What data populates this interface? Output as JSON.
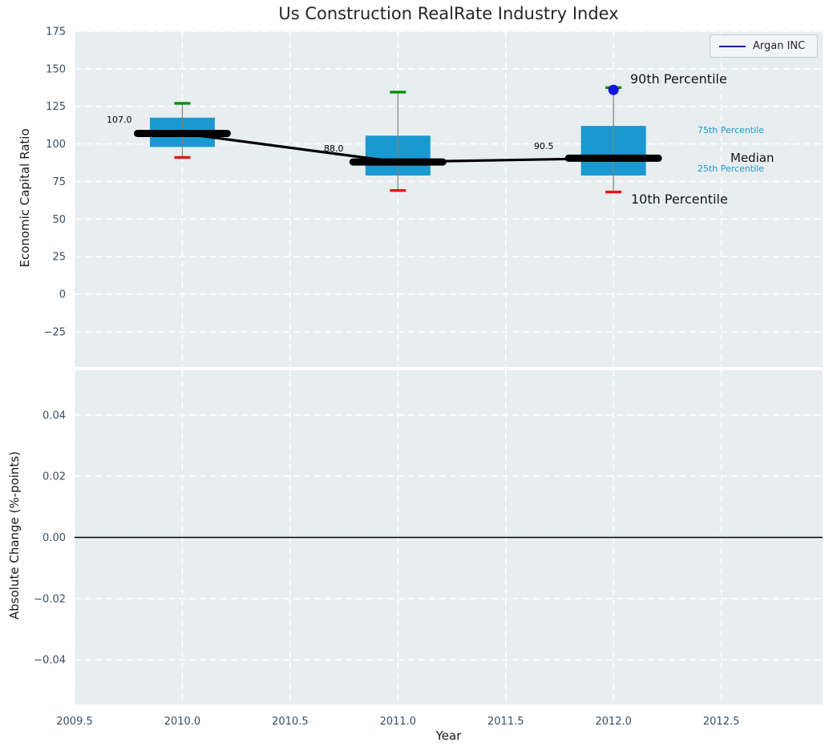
{
  "figure": {
    "title": "Us Construction RealRate Industry Index",
    "xlabel": "Year",
    "top_ylabel": "Economic Capital Ratio",
    "bottom_ylabel": "Absolute Change (%-points)",
    "legend_label": "Argan INC"
  },
  "chart_data": [
    {
      "type": "boxplot",
      "panel": "top",
      "title": "Us Construction RealRate Industry Index",
      "ylabel": "Economic Capital Ratio",
      "xlabel": "Year",
      "legend": [
        {
          "label": "Argan INC",
          "color": "#1414cc"
        }
      ],
      "legend_position": "upper right",
      "grid": "white dashed gridlines on light panel",
      "xlim": [
        2009.5,
        2012.97
      ],
      "ylim": [
        -48.5,
        175
      ],
      "xticks": [
        2009.5,
        2010.0,
        2010.5,
        2011.0,
        2011.5,
        2012.0,
        2012.5
      ],
      "xtick_labels": [
        "2009.5",
        "2010.0",
        "2010.5",
        "2011.0",
        "2011.5",
        "2012.0",
        "2012.5"
      ],
      "yticks": [
        175,
        150,
        125,
        100,
        75,
        50,
        25,
        0,
        -25
      ],
      "ytick_labels": [
        "175",
        "150",
        "125",
        "100",
        "75",
        "50",
        "25",
        "0",
        "−25"
      ],
      "boxes": [
        {
          "year": 2010,
          "median": 107.0,
          "median_label": "107.0",
          "q1": 98.0,
          "q3": 117.5,
          "p10": 91.0,
          "p90": 127.0
        },
        {
          "year": 2011,
          "median": 88.0,
          "median_label": "88.0",
          "q1": 79.0,
          "q3": 105.5,
          "p10": 69.0,
          "p90": 134.5
        },
        {
          "year": 2012,
          "median": 90.5,
          "median_label": "90.5",
          "q1": 79.0,
          "q3": 112.0,
          "p10": 68.0,
          "p90": 137.5
        }
      ],
      "median_line": [
        [
          2010,
          107.0
        ],
        [
          2011,
          88.0
        ],
        [
          2012,
          90.5
        ]
      ],
      "argan_point": {
        "year": 2012,
        "value": 136.0
      },
      "annotations": {
        "p90": "90th Percentile",
        "p75": "75th Percentile",
        "median": "Median",
        "p25": "25th Percentile",
        "p10": "10th Percentile"
      },
      "colors": {
        "box": "#1a99d0",
        "median_line": "#000000",
        "whisker": "#808080",
        "p90_cap": "#009000",
        "p10_cap": "#e81414",
        "argan": "#1414dc",
        "panel_bg": "#e8edef",
        "grid": "#ffffff",
        "tick_text": "#3a4d63",
        "annotation_accent": "#189ad2"
      }
    },
    {
      "type": "line",
      "panel": "bottom",
      "ylabel": "Absolute Change (%-points)",
      "ylim": [
        -0.0546,
        0.0546
      ],
      "yticks": [
        0.04,
        0.02,
        0.0,
        -0.02,
        -0.04
      ],
      "ytick_labels": [
        "0.04",
        "0.02",
        "0.00",
        "−0.02",
        "−0.04"
      ],
      "zero_line": 0.0,
      "series": []
    }
  ]
}
